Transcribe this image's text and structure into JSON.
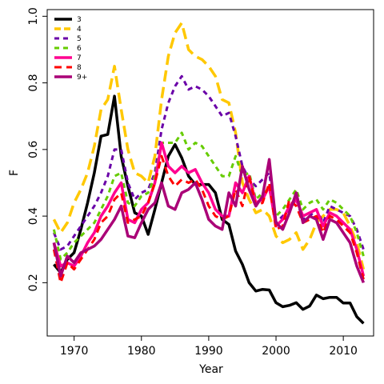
{
  "chart_data": {
    "type": "line",
    "xlabel": "Year",
    "ylabel": "F",
    "xlim": [
      1966,
      2014.5
    ],
    "ylim": [
      0.04,
      1.02
    ],
    "xticks": [
      1970,
      1980,
      1990,
      2000,
      2010
    ],
    "yticks": [
      0.2,
      0.4,
      0.6,
      0.8,
      1.0
    ],
    "ytick_labels": [
      "0.2",
      "0.4",
      "0.6",
      "0.8",
      "1.0"
    ],
    "legend_position": "top-left",
    "grid": false,
    "x": [
      1967,
      1968,
      1969,
      1970,
      1971,
      1972,
      1973,
      1974,
      1975,
      1976,
      1977,
      1978,
      1979,
      1980,
      1981,
      1982,
      1983,
      1984,
      1985,
      1986,
      1987,
      1988,
      1989,
      1990,
      1991,
      1992,
      1993,
      1994,
      1995,
      1996,
      1997,
      1998,
      1999,
      2000,
      2001,
      2002,
      2003,
      2004,
      2005,
      2006,
      2007,
      2008,
      2009,
      2010,
      2011,
      2012,
      2013
    ],
    "series": [
      {
        "name": "3",
        "color": "#000000",
        "dash": "",
        "width": 3.5,
        "values": [
          0.255,
          0.23,
          0.27,
          0.29,
          0.36,
          0.44,
          0.53,
          0.64,
          0.645,
          0.76,
          0.58,
          0.49,
          0.41,
          0.4,
          0.345,
          0.42,
          0.5,
          0.58,
          0.615,
          0.575,
          0.52,
          0.495,
          0.495,
          0.495,
          0.47,
          0.39,
          0.375,
          0.295,
          0.255,
          0.2,
          0.175,
          0.18,
          0.178,
          0.14,
          0.128,
          0.132,
          0.14,
          0.12,
          0.13,
          0.163,
          0.152,
          0.156,
          0.156,
          0.139,
          0.139,
          0.098,
          0.078
        ]
      },
      {
        "name": "4",
        "color": "#ffc800",
        "dash": "14,7",
        "width": 3.5,
        "values": [
          0.39,
          0.35,
          0.38,
          0.44,
          0.48,
          0.53,
          0.61,
          0.72,
          0.75,
          0.85,
          0.72,
          0.6,
          0.53,
          0.52,
          0.5,
          0.58,
          0.75,
          0.88,
          0.95,
          0.98,
          0.9,
          0.88,
          0.87,
          0.85,
          0.82,
          0.75,
          0.74,
          0.65,
          0.5,
          0.45,
          0.41,
          0.42,
          0.4,
          0.34,
          0.32,
          0.33,
          0.35,
          0.3,
          0.33,
          0.38,
          0.4,
          0.42,
          0.42,
          0.41,
          0.37,
          0.32,
          0.24
        ]
      },
      {
        "name": "5",
        "color": "#6a00a8",
        "dash": "6,5",
        "width": 3,
        "values": [
          0.35,
          0.3,
          0.31,
          0.34,
          0.37,
          0.4,
          0.43,
          0.47,
          0.52,
          0.6,
          0.6,
          0.5,
          0.45,
          0.47,
          0.48,
          0.53,
          0.66,
          0.74,
          0.79,
          0.82,
          0.78,
          0.79,
          0.78,
          0.76,
          0.73,
          0.7,
          0.71,
          0.64,
          0.55,
          0.51,
          0.49,
          0.51,
          0.53,
          0.38,
          0.4,
          0.42,
          0.45,
          0.39,
          0.4,
          0.42,
          0.38,
          0.43,
          0.42,
          0.41,
          0.4,
          0.36,
          0.3
        ]
      },
      {
        "name": "6",
        "color": "#66cc00",
        "dash": "6,5",
        "width": 3,
        "values": [
          0.36,
          0.27,
          0.29,
          0.32,
          0.34,
          0.36,
          0.38,
          0.42,
          0.46,
          0.52,
          0.53,
          0.44,
          0.43,
          0.46,
          0.47,
          0.52,
          0.62,
          0.62,
          0.62,
          0.65,
          0.6,
          0.62,
          0.61,
          0.58,
          0.55,
          0.52,
          0.52,
          0.58,
          0.52,
          0.53,
          0.45,
          0.47,
          0.48,
          0.4,
          0.42,
          0.45,
          0.48,
          0.42,
          0.44,
          0.45,
          0.42,
          0.45,
          0.44,
          0.42,
          0.4,
          0.35,
          0.28
        ]
      },
      {
        "name": "7",
        "color": "#ff0090",
        "dash": "",
        "width": 3.5,
        "values": [
          0.32,
          0.25,
          0.26,
          0.25,
          0.28,
          0.32,
          0.35,
          0.4,
          0.43,
          0.47,
          0.5,
          0.39,
          0.38,
          0.42,
          0.44,
          0.5,
          0.62,
          0.55,
          0.53,
          0.55,
          0.53,
          0.54,
          0.5,
          0.47,
          0.42,
          0.4,
          0.4,
          0.5,
          0.47,
          0.52,
          0.44,
          0.45,
          0.49,
          0.37,
          0.39,
          0.43,
          0.45,
          0.4,
          0.41,
          0.42,
          0.37,
          0.41,
          0.4,
          0.38,
          0.36,
          0.3,
          0.22
        ]
      },
      {
        "name": "8",
        "color": "#ff0000",
        "dash": "9,6",
        "width": 3,
        "values": [
          0.3,
          0.2,
          0.26,
          0.24,
          0.27,
          0.3,
          0.33,
          0.38,
          0.4,
          0.45,
          0.47,
          0.38,
          0.39,
          0.4,
          0.44,
          0.5,
          0.58,
          0.52,
          0.49,
          0.51,
          0.5,
          0.51,
          0.48,
          0.43,
          0.4,
          0.39,
          0.4,
          0.48,
          0.43,
          0.52,
          0.43,
          0.44,
          0.5,
          0.36,
          0.37,
          0.45,
          0.43,
          0.38,
          0.39,
          0.4,
          0.35,
          0.4,
          0.39,
          0.37,
          0.35,
          0.29,
          0.21
        ]
      },
      {
        "name": "9+",
        "color": "#aa0077",
        "dash": "",
        "width": 3.5,
        "values": [
          0.32,
          0.22,
          0.28,
          0.26,
          0.29,
          0.3,
          0.31,
          0.33,
          0.36,
          0.39,
          0.43,
          0.34,
          0.335,
          0.38,
          0.42,
          0.44,
          0.5,
          0.43,
          0.42,
          0.47,
          0.48,
          0.5,
          0.45,
          0.39,
          0.37,
          0.36,
          0.47,
          0.43,
          0.55,
          0.48,
          0.43,
          0.46,
          0.57,
          0.38,
          0.36,
          0.41,
          0.47,
          0.38,
          0.4,
          0.39,
          0.33,
          0.39,
          0.38,
          0.35,
          0.32,
          0.25,
          0.2
        ]
      }
    ]
  }
}
